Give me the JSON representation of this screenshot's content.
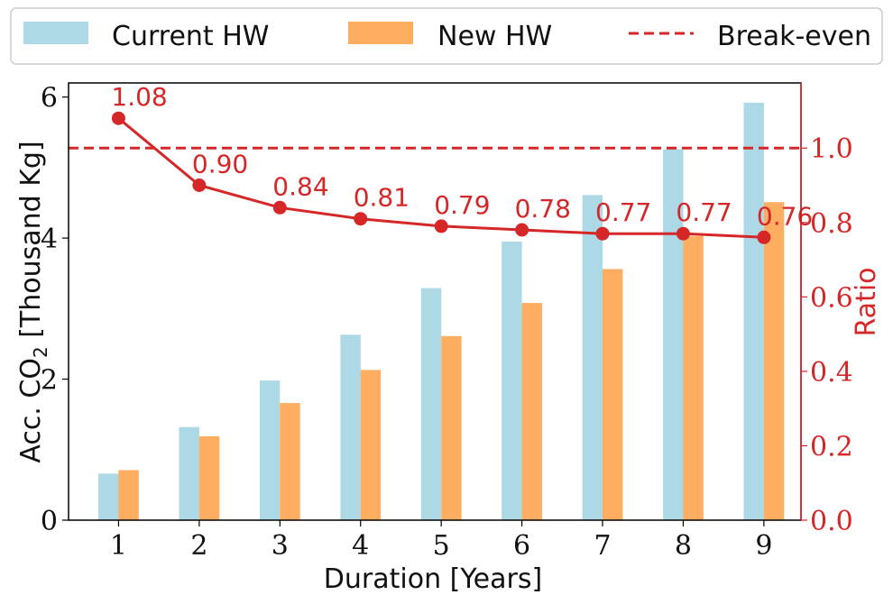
{
  "chart_data": {
    "type": "bar",
    "categories": [
      "1",
      "2",
      "3",
      "4",
      "5",
      "6",
      "7",
      "8",
      "9"
    ],
    "series": [
      {
        "name": "Current HW",
        "values": [
          0.66,
          1.32,
          1.98,
          2.63,
          3.29,
          3.95,
          4.61,
          5.26,
          5.92
        ],
        "color": "#add8e6"
      },
      {
        "name": "New HW",
        "values": [
          0.71,
          1.19,
          1.66,
          2.13,
          2.61,
          3.08,
          3.56,
          4.03,
          4.51
        ],
        "color": "#ffad60"
      }
    ],
    "ratio": {
      "values": [
        1.08,
        0.9,
        0.84,
        0.81,
        0.79,
        0.78,
        0.77,
        0.77,
        0.76
      ],
      "labels": [
        "1.08",
        "0.90",
        "0.84",
        "0.81",
        "0.79",
        "0.78",
        "0.77",
        "0.77",
        "0.76"
      ],
      "color": "#d62728"
    },
    "break_even": {
      "name": "Break-even",
      "value": 1.0,
      "color": "#d62728"
    },
    "xlabel": "Duration [Years]",
    "ylabel_main": "Acc. CO",
    "ylabel_sub": "2",
    "ylabel_tail": " [Thousand Kg]",
    "y2label": "Ratio",
    "ylim": [
      0,
      6.2
    ],
    "y2lim": [
      0,
      1.175
    ],
    "yticks": [
      0,
      2,
      4,
      6
    ],
    "ytick_labels": [
      "0",
      "2",
      "4",
      "6"
    ],
    "y2ticks": [
      0.0,
      0.2,
      0.4,
      0.6,
      0.8,
      1.0
    ],
    "y2tick_labels": [
      "0.0",
      "0.2",
      "0.4",
      "0.6",
      "0.8",
      "1.0"
    ],
    "legend_position": "top",
    "grid": false
  }
}
